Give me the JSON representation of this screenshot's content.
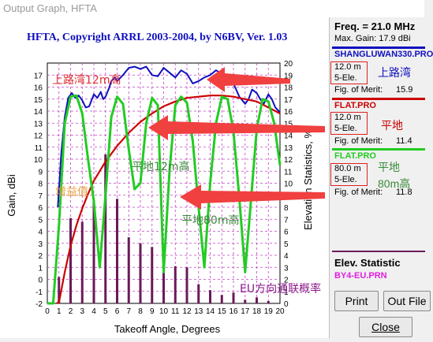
{
  "window": {
    "title": "Output Graph, HFTA"
  },
  "chart": {
    "title": "HFTA, Copyright ARRL 2003-2004, by N6BV, Ver. 1.03",
    "xlabel": "Takeoff Angle, Degrees",
    "ylabel": "Gain, dBi",
    "y2label": "Elevation Statistics, %"
  },
  "chart_data": {
    "type": "line",
    "x_ticks": [
      "0",
      "1",
      "2",
      "3",
      "4",
      "5",
      "6",
      "7",
      "8",
      "9",
      "10",
      "11",
      "12",
      "13",
      "14",
      "15",
      "16",
      "17",
      "18",
      "19",
      "20"
    ],
    "y_ticks": [
      "-2",
      "-1",
      "0",
      "1",
      "2",
      "3",
      "4",
      "5",
      "6",
      "7",
      "8",
      "9",
      "10",
      "11",
      "12",
      "13",
      "14",
      "15",
      "16",
      "17"
    ],
    "y2_ticks": [
      "0",
      "1",
      "2",
      "3",
      "4",
      "5",
      "6",
      "7",
      "8",
      "9",
      "10",
      "11",
      "12",
      "13",
      "14",
      "15",
      "16",
      "17",
      "18",
      "19",
      "20"
    ],
    "xlim": [
      0,
      20
    ],
    "ylim": [
      -2,
      18
    ],
    "y2lim": [
      0,
      20
    ],
    "grid": true,
    "series": [
      {
        "name": "SHANGLUWAN330.PRO",
        "color": "#1010c0",
        "x": [
          0.9,
          1.2,
          1.5,
          1.8,
          2.1,
          2.4,
          2.7,
          3.0,
          3.3,
          3.6,
          4.0,
          4.3,
          4.6,
          4.8,
          5.0,
          5.3,
          5.5,
          5.8,
          6.0,
          6.5,
          7.0,
          7.5,
          8.0,
          8.5,
          9.0,
          9.5,
          10.0,
          10.5,
          11.0,
          11.5,
          12.0,
          12.5,
          13.0,
          13.5,
          14.0,
          14.5,
          15.0,
          15.5,
          16.0,
          16.5,
          17.0,
          17.3,
          17.6,
          18.0,
          18.3,
          18.6,
          19.0,
          19.3,
          19.6,
          20.0
        ],
        "y": [
          6.0,
          10.5,
          13.5,
          15.1,
          15.5,
          15.1,
          15.3,
          14.9,
          14.3,
          14.4,
          15.4,
          15.1,
          15.6,
          15.0,
          15.2,
          15.9,
          16.5,
          16.8,
          16.5,
          17.0,
          17.6,
          17.7,
          17.5,
          17.7,
          17.0,
          16.9,
          17.6,
          17.2,
          16.8,
          17.4,
          17.1,
          16.3,
          16.5,
          16.8,
          17.0,
          17.4,
          17.1,
          16.5,
          16.3,
          15.2,
          14.6,
          15.0,
          15.8,
          15.5,
          15.0,
          14.6,
          15.4,
          15.0,
          14.3,
          13.9
        ]
      },
      {
        "name": "FLAT.PRO",
        "color": "#cc0000",
        "x": [
          0.8,
          1.0,
          1.5,
          2.0,
          2.5,
          3.0,
          3.5,
          4.0,
          5.0,
          6.0,
          7.0,
          8.0,
          9.0,
          10.0,
          11.0,
          12.0,
          13.0,
          14.0,
          15.0,
          16.0,
          17.0,
          18.0,
          19.0,
          20.0
        ],
        "y": [
          -2.0,
          -1.9,
          0.6,
          2.8,
          4.5,
          5.9,
          7.1,
          8.2,
          9.8,
          11.1,
          12.2,
          13.1,
          13.8,
          14.4,
          14.8,
          15.1,
          15.2,
          15.3,
          15.3,
          15.2,
          15.0,
          14.8,
          14.3,
          13.8
        ]
      },
      {
        "name": "FLAT.PRO",
        "color": "#22cc22",
        "x": [
          0.0,
          0.5,
          1.0,
          1.5,
          2.0,
          2.5,
          3.0,
          3.5,
          4.0,
          4.5,
          5.0,
          5.5,
          6.0,
          6.5,
          7.0,
          7.5,
          8.0,
          8.5,
          9.0,
          9.5,
          10.0,
          10.5,
          11.0,
          11.5,
          12.0,
          12.5,
          13.0,
          13.5,
          14.0,
          14.5,
          15.0,
          15.5,
          16.0,
          16.5,
          17.0,
          17.5,
          18.0,
          18.5,
          19.0,
          19.5,
          20.0
        ],
        "y": [
          -2.0,
          -2.0,
          4.5,
          13.0,
          15.2,
          15.3,
          13.8,
          10.0,
          6.5,
          1.0,
          7.0,
          13.5,
          15.2,
          14.6,
          10.8,
          7.5,
          8.0,
          13.0,
          15.1,
          14.5,
          0.6,
          9.0,
          14.5,
          15.2,
          14.7,
          11.5,
          6.0,
          1.0,
          8.0,
          13.0,
          15.2,
          15.0,
          12.3,
          6.8,
          0.6,
          6.5,
          12.5,
          15.0,
          14.8,
          13.0,
          9.5
        ]
      }
    ],
    "elevation_bars": {
      "name": "BY4-EU.PRN",
      "color": "#6a1a5a",
      "x": [
        1,
        2,
        3,
        4,
        5,
        6,
        7,
        8,
        9,
        10,
        11,
        12,
        13,
        14,
        15,
        16,
        17,
        18,
        19
      ],
      "y": [
        2.2,
        7.1,
        6.8,
        8.6,
        12.4,
        8.7,
        5.5,
        5.0,
        4.7,
        4.6,
        3.1,
        3.0,
        1.6,
        1.1,
        0.7,
        0.9,
        0.3,
        0.5,
        0.2
      ]
    }
  },
  "annotations": {
    "shangluwan_12m": "上路湾12m高",
    "flat_12m": "平地12m高",
    "flat_80m": "平地80m高",
    "zengyi": "增益值",
    "eu_prob": "EU方向通联概率"
  },
  "side": {
    "freq": "Freq. = 21.0 MHz",
    "max_gain": "Max. Gain: 17.9 dBi",
    "series": [
      {
        "file": "SHANGLUWAN330.PRO",
        "height": "12.0 m",
        "elements": "5-Ele.",
        "fom_label": "Fig. of Merit:",
        "fom": "15.9",
        "tag": "上路湾"
      },
      {
        "file": "FLAT.PRO",
        "height": "12.0 m",
        "elements": "5-Ele.",
        "fom_label": "Fig. of Merit:",
        "fom": "11.4",
        "tag": "平地"
      },
      {
        "file": "FLAT.PRO",
        "height": "80.0 m",
        "elements": "5-Ele.",
        "fom_label": "Fig. of Merit:",
        "fom": "11.8",
        "tag": "平地",
        "tag2": "80m高"
      }
    ],
    "elev_stat_label": "Elev. Statistic",
    "elev_stat_file": "BY4-EU.PRN",
    "buttons": {
      "print": "Print",
      "outfile": "Out File",
      "close": "Close"
    }
  },
  "colors": {
    "blue": "#1010c0",
    "red": "#cc0000",
    "green": "#22cc22",
    "bars": "#6a1a5a",
    "magenta": "#e01ee0",
    "arrow": "#f04040"
  }
}
